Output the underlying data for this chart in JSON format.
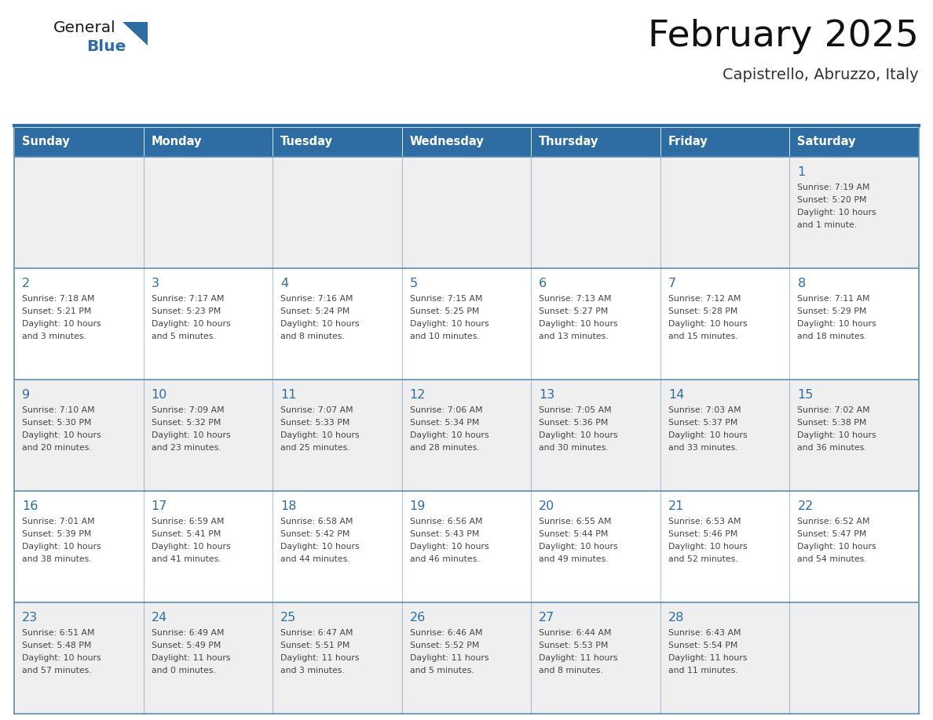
{
  "title": "February 2025",
  "subtitle": "Capistrello, Abruzzo, Italy",
  "header_bg": "#2E6DA4",
  "header_text_color": "#FFFFFF",
  "cell_bg_odd": "#EFEFEF",
  "cell_bg_even": "#FFFFFF",
  "day_number_color": "#2E6DA4",
  "text_color": "#444444",
  "border_color": "#5B8DB8",
  "days_of_week": [
    "Sunday",
    "Monday",
    "Tuesday",
    "Wednesday",
    "Thursday",
    "Friday",
    "Saturday"
  ],
  "logo_general_color": "#1A1A1A",
  "logo_blue_color": "#2E6DA4",
  "calendar_data": [
    [
      null,
      null,
      null,
      null,
      null,
      null,
      {
        "day": 1,
        "sunrise": "7:19 AM",
        "sunset": "5:20 PM",
        "daylight": "10 hours\nand 1 minute."
      }
    ],
    [
      {
        "day": 2,
        "sunrise": "7:18 AM",
        "sunset": "5:21 PM",
        "daylight": "10 hours\nand 3 minutes."
      },
      {
        "day": 3,
        "sunrise": "7:17 AM",
        "sunset": "5:23 PM",
        "daylight": "10 hours\nand 5 minutes."
      },
      {
        "day": 4,
        "sunrise": "7:16 AM",
        "sunset": "5:24 PM",
        "daylight": "10 hours\nand 8 minutes."
      },
      {
        "day": 5,
        "sunrise": "7:15 AM",
        "sunset": "5:25 PM",
        "daylight": "10 hours\nand 10 minutes."
      },
      {
        "day": 6,
        "sunrise": "7:13 AM",
        "sunset": "5:27 PM",
        "daylight": "10 hours\nand 13 minutes."
      },
      {
        "day": 7,
        "sunrise": "7:12 AM",
        "sunset": "5:28 PM",
        "daylight": "10 hours\nand 15 minutes."
      },
      {
        "day": 8,
        "sunrise": "7:11 AM",
        "sunset": "5:29 PM",
        "daylight": "10 hours\nand 18 minutes."
      }
    ],
    [
      {
        "day": 9,
        "sunrise": "7:10 AM",
        "sunset": "5:30 PM",
        "daylight": "10 hours\nand 20 minutes."
      },
      {
        "day": 10,
        "sunrise": "7:09 AM",
        "sunset": "5:32 PM",
        "daylight": "10 hours\nand 23 minutes."
      },
      {
        "day": 11,
        "sunrise": "7:07 AM",
        "sunset": "5:33 PM",
        "daylight": "10 hours\nand 25 minutes."
      },
      {
        "day": 12,
        "sunrise": "7:06 AM",
        "sunset": "5:34 PM",
        "daylight": "10 hours\nand 28 minutes."
      },
      {
        "day": 13,
        "sunrise": "7:05 AM",
        "sunset": "5:36 PM",
        "daylight": "10 hours\nand 30 minutes."
      },
      {
        "day": 14,
        "sunrise": "7:03 AM",
        "sunset": "5:37 PM",
        "daylight": "10 hours\nand 33 minutes."
      },
      {
        "day": 15,
        "sunrise": "7:02 AM",
        "sunset": "5:38 PM",
        "daylight": "10 hours\nand 36 minutes."
      }
    ],
    [
      {
        "day": 16,
        "sunrise": "7:01 AM",
        "sunset": "5:39 PM",
        "daylight": "10 hours\nand 38 minutes."
      },
      {
        "day": 17,
        "sunrise": "6:59 AM",
        "sunset": "5:41 PM",
        "daylight": "10 hours\nand 41 minutes."
      },
      {
        "day": 18,
        "sunrise": "6:58 AM",
        "sunset": "5:42 PM",
        "daylight": "10 hours\nand 44 minutes."
      },
      {
        "day": 19,
        "sunrise": "6:56 AM",
        "sunset": "5:43 PM",
        "daylight": "10 hours\nand 46 minutes."
      },
      {
        "day": 20,
        "sunrise": "6:55 AM",
        "sunset": "5:44 PM",
        "daylight": "10 hours\nand 49 minutes."
      },
      {
        "day": 21,
        "sunrise": "6:53 AM",
        "sunset": "5:46 PM",
        "daylight": "10 hours\nand 52 minutes."
      },
      {
        "day": 22,
        "sunrise": "6:52 AM",
        "sunset": "5:47 PM",
        "daylight": "10 hours\nand 54 minutes."
      }
    ],
    [
      {
        "day": 23,
        "sunrise": "6:51 AM",
        "sunset": "5:48 PM",
        "daylight": "10 hours\nand 57 minutes."
      },
      {
        "day": 24,
        "sunrise": "6:49 AM",
        "sunset": "5:49 PM",
        "daylight": "11 hours\nand 0 minutes."
      },
      {
        "day": 25,
        "sunrise": "6:47 AM",
        "sunset": "5:51 PM",
        "daylight": "11 hours\nand 3 minutes."
      },
      {
        "day": 26,
        "sunrise": "6:46 AM",
        "sunset": "5:52 PM",
        "daylight": "11 hours\nand 5 minutes."
      },
      {
        "day": 27,
        "sunrise": "6:44 AM",
        "sunset": "5:53 PM",
        "daylight": "11 hours\nand 8 minutes."
      },
      {
        "day": 28,
        "sunrise": "6:43 AM",
        "sunset": "5:54 PM",
        "daylight": "11 hours\nand 11 minutes."
      },
      null
    ]
  ]
}
